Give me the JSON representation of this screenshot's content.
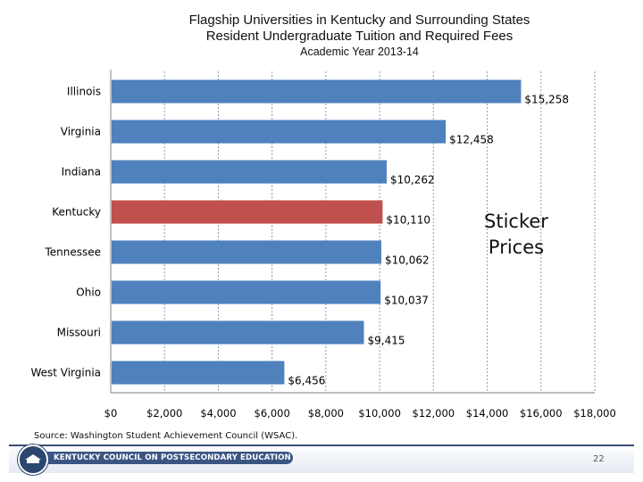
{
  "title": {
    "line1": "Flagship Universities in Kentucky and Surrounding States",
    "line2": "Resident Undergraduate Tuition and Required Fees",
    "line3": "Academic Year 2013-14"
  },
  "annotation": {
    "line1": "Sticker",
    "line2": "Prices"
  },
  "source": "Source: Washington Student Achievement Council (WSAC).",
  "footer": {
    "org_name": "KENTUCKY COUNCIL ON POSTSECONDARY EDUCATION",
    "page_number": "22"
  },
  "colors": {
    "bar": "#4f81bd",
    "highlight": "#c0504d",
    "grid": "#8e9ab0"
  },
  "chart_data": {
    "type": "bar",
    "orientation": "horizontal",
    "title": "Flagship Universities in Kentucky and Surrounding States — Resident Undergraduate Tuition and Required Fees, Academic Year 2013-14",
    "categories": [
      "Illinois",
      "Virginia",
      "Indiana",
      "Kentucky",
      "Tennessee",
      "Ohio",
      "Missouri",
      "West Virginia"
    ],
    "values": [
      15258,
      12458,
      10262,
      10110,
      10062,
      10037,
      9415,
      6456
    ],
    "data_labels": [
      "$15,258",
      "$12,458",
      "$10,262",
      "$10,110",
      "$10,062",
      "$10,037",
      "$9,415",
      "$6,456"
    ],
    "highlight": "Kentucky",
    "xlim": [
      0,
      18000
    ],
    "x_ticks": [
      0,
      2000,
      4000,
      6000,
      8000,
      10000,
      12000,
      14000,
      16000,
      18000
    ],
    "x_tick_labels": [
      "$0",
      "$2,000",
      "$4,000",
      "$6,000",
      "$8,000",
      "$10,000",
      "$12,000",
      "$14,000",
      "$16,000",
      "$18,000"
    ],
    "grid": true,
    "xlabel": "",
    "ylabel": ""
  }
}
